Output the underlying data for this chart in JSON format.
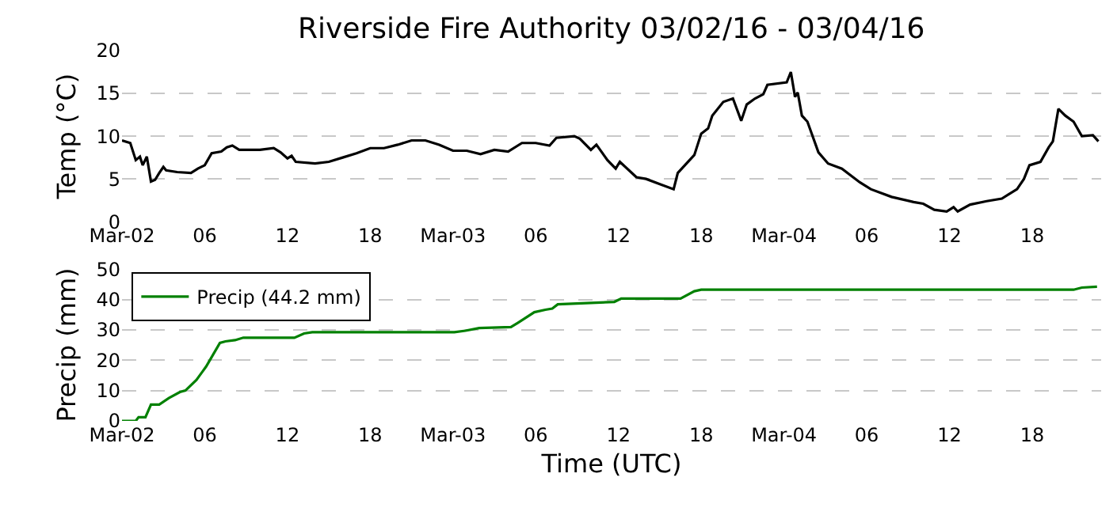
{
  "chart_data": [
    {
      "type": "line",
      "title": "Riverside Fire Authority 03/02/16 - 03/04/16",
      "ylabel": "Temp (°C)",
      "grid": "y",
      "legend": false,
      "x": [
        "--03-02T00:00",
        "--03-02T00:36",
        "--03-02T01:00",
        "--03-02T01:18",
        "--03-02T01:30",
        "--03-02T01:48",
        "--03-02T02:06",
        "--03-02T02:24",
        "--03-02T02:42",
        "--03-02T03:00",
        "--03-02T03:12",
        "--03-02T04:00",
        "--03-02T05:00",
        "--03-02T05:30",
        "--03-02T06:00",
        "--03-02T06:30",
        "--03-02T07:12",
        "--03-02T07:36",
        "--03-02T08:00",
        "--03-02T08:30",
        "--03-02T10:00",
        "--03-02T11:00",
        "--03-02T11:30",
        "--03-02T12:00",
        "--03-02T12:18",
        "--03-02T12:36",
        "--03-02T14:00",
        "--03-02T15:00",
        "--03-02T16:00",
        "--03-02T17:00",
        "--03-02T18:00",
        "--03-02T19:00",
        "--03-02T20:00",
        "--03-02T21:00",
        "--03-02T22:00",
        "--03-02T23:00",
        "--03-03T00:00",
        "--03-03T01:00",
        "--03-03T02:00",
        "--03-03T03:00",
        "--03-03T04:00",
        "--03-03T05:00",
        "--03-03T06:00",
        "--03-03T07:00",
        "--03-03T07:30",
        "--03-03T08:48",
        "--03-03T09:12",
        "--03-03T10:00",
        "--03-03T10:24",
        "--03-03T11:12",
        "--03-03T11:48",
        "--03-03T12:06",
        "--03-03T13:18",
        "--03-03T14:00",
        "--03-03T15:00",
        "--03-03T16:00",
        "--03-03T16:18",
        "--03-03T17:30",
        "--03-03T18:00",
        "--03-03T18:30",
        "--03-03T18:48",
        "--03-03T19:36",
        "--03-03T20:18",
        "--03-03T20:54",
        "--03-03T21:18",
        "--03-03T21:54",
        "--03-03T22:30",
        "--03-03T22:48",
        "--03-04T00:12",
        "--03-04T00:30",
        "--03-04T00:48",
        "--03-04T01:00",
        "--03-04T01:18",
        "--03-04T01:42",
        "--03-04T02:30",
        "--03-04T03:12",
        "--03-04T04:12",
        "--03-04T05:30",
        "--03-04T06:18",
        "--03-04T07:48",
        "--03-04T09:24",
        "--03-04T10:06",
        "--03-04T10:54",
        "--03-04T11:48",
        "--03-04T12:18",
        "--03-04T12:36",
        "--03-04T13:30",
        "--03-04T14:42",
        "--03-04T15:48",
        "--03-04T16:54",
        "--03-04T17:24",
        "--03-04T17:48",
        "--03-04T18:36",
        "--03-04T19:12",
        "--03-04T19:30",
        "--03-04T19:54",
        "--03-04T20:24",
        "--03-04T21:00",
        "--03-04T21:36",
        "--03-04T22:24",
        "--03-04T22:48"
      ],
      "series": [
        {
          "color": "#000000",
          "values": [
            9.5,
            9.2,
            7.2,
            7.6,
            6.6,
            7.6,
            4.7,
            4.9,
            5.7,
            6.4,
            6.0,
            5.8,
            5.7,
            6.2,
            6.6,
            8.0,
            8.2,
            8.7,
            8.9,
            8.4,
            8.4,
            8.6,
            8.1,
            7.4,
            7.7,
            7.0,
            6.8,
            7.0,
            7.5,
            8.0,
            8.6,
            8.6,
            9.0,
            9.5,
            9.5,
            9.0,
            8.3,
            8.3,
            7.9,
            8.4,
            8.2,
            9.2,
            9.2,
            8.9,
            9.8,
            10.0,
            9.7,
            8.4,
            9.0,
            7.2,
            6.2,
            7.0,
            5.2,
            5.0,
            4.4,
            3.8,
            5.7,
            7.8,
            10.3,
            10.9,
            12.4,
            14.0,
            14.4,
            11.8,
            13.7,
            14.4,
            14.9,
            16.0,
            16.3,
            17.5,
            14.6,
            15.1,
            12.4,
            11.7,
            8.1,
            6.8,
            6.2,
            4.6,
            3.8,
            2.9,
            2.3,
            2.1,
            1.4,
            1.2,
            1.7,
            1.2,
            2.0,
            2.4,
            2.7,
            3.8,
            5.0,
            6.6,
            7.0,
            8.7,
            9.4,
            13.2,
            12.4,
            11.7,
            10.0,
            10.1,
            9.4
          ]
        }
      ],
      "xlim": [
        "--03-02T00:00",
        "--03-04T23:00"
      ],
      "xticks": [
        {
          "value": "--03-02T00:00",
          "label": "Mar-02"
        },
        {
          "value": "--03-02T06:00",
          "label": "06"
        },
        {
          "value": "--03-02T12:00",
          "label": "12"
        },
        {
          "value": "--03-02T18:00",
          "label": "18"
        },
        {
          "value": "--03-03T00:00",
          "label": "Mar-03"
        },
        {
          "value": "--03-03T06:00",
          "label": "06"
        },
        {
          "value": "--03-03T12:00",
          "label": "12"
        },
        {
          "value": "--03-03T18:00",
          "label": "18"
        },
        {
          "value": "--03-04T00:00",
          "label": "Mar-04"
        },
        {
          "value": "--03-04T06:00",
          "label": "06"
        },
        {
          "value": "--03-04T12:00",
          "label": "12"
        },
        {
          "value": "--03-04T18:00",
          "label": "18"
        }
      ],
      "ylim": [
        0,
        20
      ],
      "yticks": [
        0,
        5,
        10,
        15,
        20
      ]
    },
    {
      "type": "line",
      "xlabel": "Time (UTC)",
      "ylabel": "Precip (mm)",
      "grid": "y",
      "legend": "top left",
      "x": [
        "--03-02T00:00",
        "--03-02T01:00",
        "--03-02T01:12",
        "--03-02T01:42",
        "--03-02T02:06",
        "--03-02T02:42",
        "--03-02T03:24",
        "--03-02T04:12",
        "--03-02T04:36",
        "--03-02T05:24",
        "--03-02T06:06",
        "--03-02T07:06",
        "--03-02T07:30",
        "--03-02T08:12",
        "--03-02T08:48",
        "--03-02T12:30",
        "--03-02T13:12",
        "--03-02T13:48",
        "--03-03T00:06",
        "--03-03T00:54",
        "--03-03T01:54",
        "--03-03T04:12",
        "--03-03T04:42",
        "--03-03T05:54",
        "--03-03T06:42",
        "--03-03T07:12",
        "--03-03T07:36",
        "--03-03T11:42",
        "--03-03T12:12",
        "--03-03T16:30",
        "--03-03T17:30",
        "--03-03T18:00",
        "--03-04T21:00",
        "--03-04T21:36",
        "--03-04T22:42"
      ],
      "series": [
        {
          "name": "Precip (44.2 mm)",
          "color": "#008000",
          "values": [
            0,
            0,
            1.2,
            1.2,
            5.4,
            5.4,
            7.5,
            9.5,
            10,
            13.5,
            17.9,
            25.7,
            26.2,
            26.6,
            27.4,
            27.4,
            28.8,
            29.2,
            29.2,
            29.7,
            30.6,
            30.9,
            32.3,
            35.8,
            36.6,
            37,
            38.4,
            39.2,
            40.3,
            40.3,
            42.7,
            43.2,
            43.2,
            43.9,
            44.2
          ]
        }
      ],
      "xlim": [
        "--03-02T00:00",
        "--03-04T23:00"
      ],
      "xticks": [
        {
          "value": "--03-02T00:00",
          "label": "Mar-02"
        },
        {
          "value": "--03-02T06:00",
          "label": "06"
        },
        {
          "value": "--03-02T12:00",
          "label": "12"
        },
        {
          "value": "--03-02T18:00",
          "label": "18"
        },
        {
          "value": "--03-03T00:00",
          "label": "Mar-03"
        },
        {
          "value": "--03-03T06:00",
          "label": "06"
        },
        {
          "value": "--03-03T12:00",
          "label": "12"
        },
        {
          "value": "--03-03T18:00",
          "label": "18"
        },
        {
          "value": "--03-04T00:00",
          "label": "Mar-04"
        },
        {
          "value": "--03-04T06:00",
          "label": "06"
        },
        {
          "value": "--03-04T12:00",
          "label": "12"
        },
        {
          "value": "--03-04T18:00",
          "label": "18"
        }
      ],
      "ylim": [
        0,
        50
      ],
      "yticks": [
        0,
        10,
        20,
        30,
        40,
        50
      ]
    }
  ]
}
